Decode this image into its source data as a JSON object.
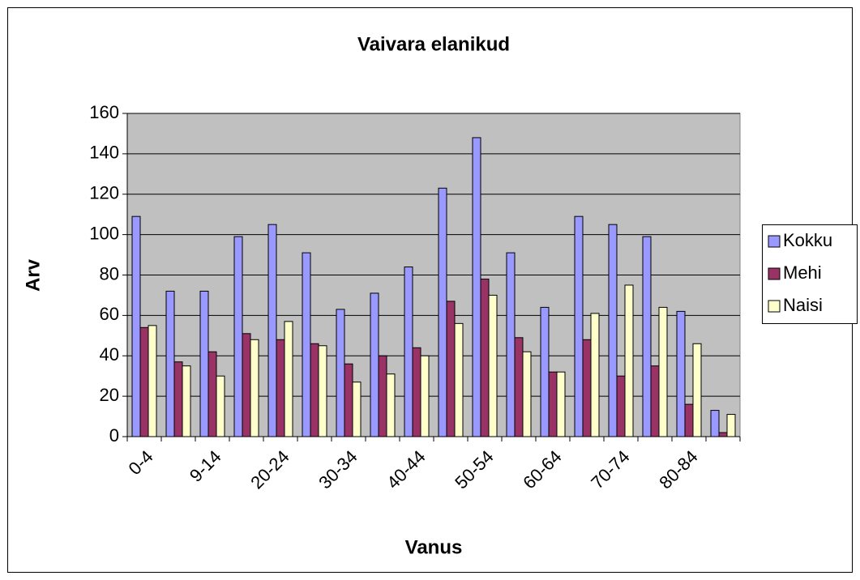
{
  "chart_data": {
    "type": "bar",
    "title": "Vaivara elanikud",
    "x_label": "Vanus",
    "y_label": "Arv",
    "categories": [
      "0-4",
      null,
      "9-14",
      null,
      "20-24",
      null,
      "30-34",
      null,
      "40-44",
      null,
      "50-54",
      null,
      "60-64",
      null,
      "70-74",
      null,
      "80-84",
      null
    ],
    "series": [
      {
        "name": "Kokku",
        "color": "#9999ff",
        "values": [
          109,
          72,
          72,
          99,
          105,
          91,
          63,
          71,
          84,
          123,
          148,
          91,
          64,
          109,
          105,
          99,
          62,
          13
        ]
      },
      {
        "name": "Mehi",
        "color": "#993366",
        "values": [
          54,
          37,
          42,
          51,
          48,
          46,
          36,
          40,
          44,
          67,
          78,
          49,
          32,
          48,
          30,
          35,
          16,
          2
        ]
      },
      {
        "name": "Naisi",
        "color": "#ffffcc",
        "values": [
          55,
          35,
          30,
          48,
          57,
          45,
          27,
          31,
          40,
          56,
          70,
          42,
          32,
          61,
          75,
          64,
          46,
          11
        ]
      }
    ],
    "ylim": [
      0,
      160
    ],
    "yticks": [
      0,
      20,
      40,
      60,
      80,
      100,
      120,
      140,
      160
    ],
    "grid": true,
    "legend": "right"
  }
}
